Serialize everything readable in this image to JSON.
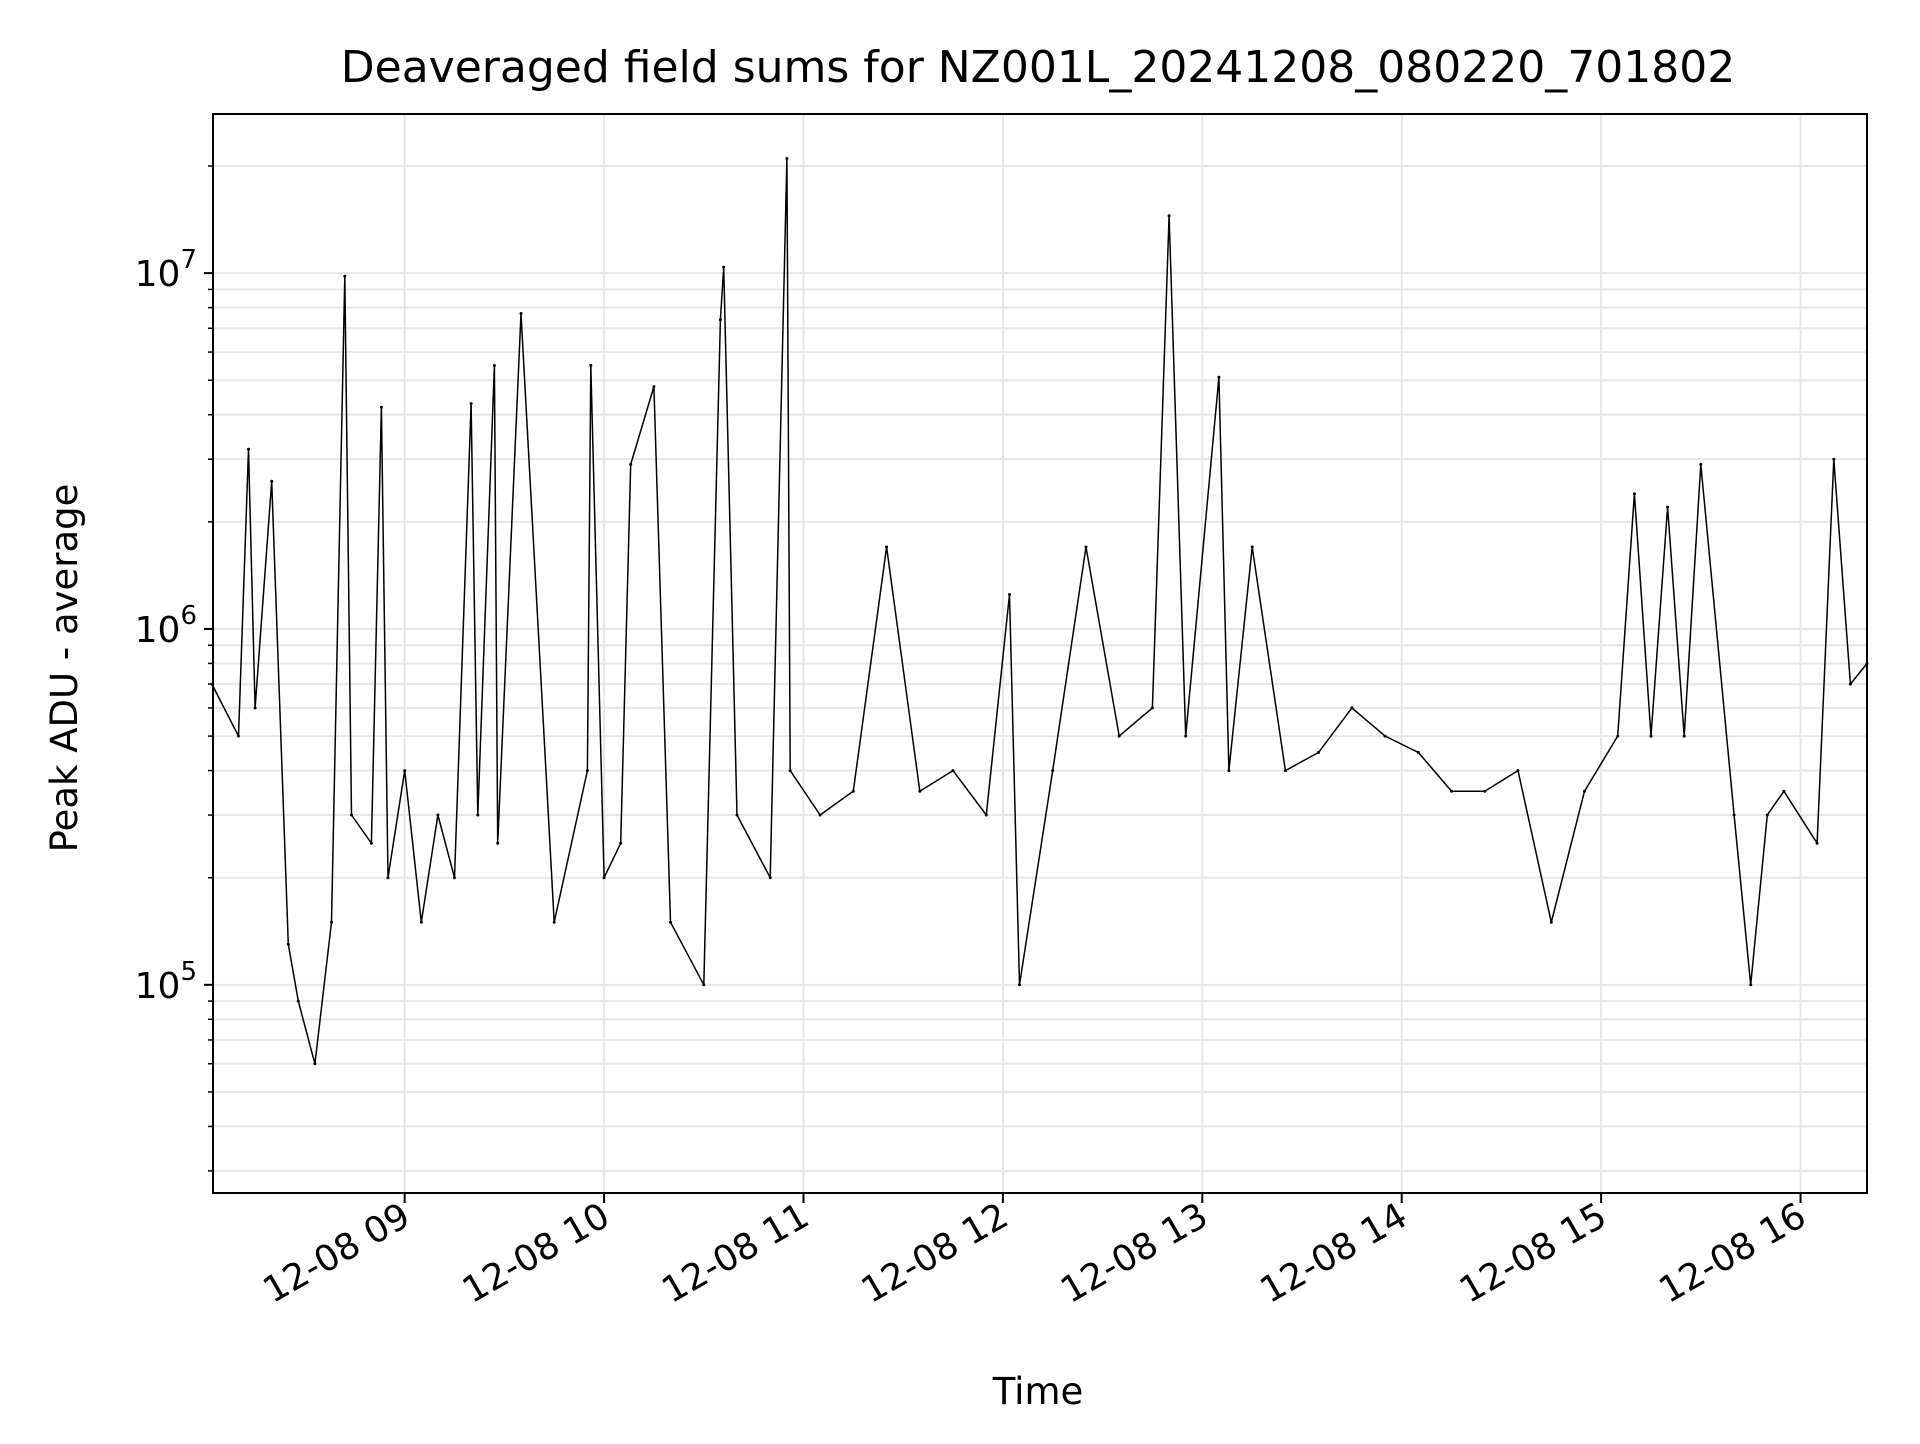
{
  "chart_data": {
    "type": "line",
    "title": "Deaveraged field sums for NZ001L_20241208_080220_701802",
    "xlabel": "Time",
    "ylabel": "Peak ADU - average",
    "y_scale": "log",
    "ylim": [
      26000,
      28000000
    ],
    "xlim": [
      "2024-12-08 08:02:20",
      "2024-12-08 16:20:00"
    ],
    "grid": true,
    "line_color": "#000000",
    "grid_color": "#e6e6e6",
    "x_ticks": [
      {
        "value": "2024-12-08 09:00",
        "label": "12-08 09"
      },
      {
        "value": "2024-12-08 10:00",
        "label": "12-08 10"
      },
      {
        "value": "2024-12-08 11:00",
        "label": "12-08 11"
      },
      {
        "value": "2024-12-08 12:00",
        "label": "12-08 12"
      },
      {
        "value": "2024-12-08 13:00",
        "label": "12-08 13"
      },
      {
        "value": "2024-12-08 14:00",
        "label": "12-08 14"
      },
      {
        "value": "2024-12-08 15:00",
        "label": "12-08 15"
      },
      {
        "value": "2024-12-08 16:00",
        "label": "12-08 16"
      }
    ],
    "y_ticks": [
      {
        "value": 100000,
        "base": "10",
        "exp": "5"
      },
      {
        "value": 1000000,
        "base": "10",
        "exp": "6"
      },
      {
        "value": 10000000,
        "base": "10",
        "exp": "7"
      }
    ],
    "series": [
      {
        "x": [
          "2024-12-08 08:02",
          "2024-12-08 08:10",
          "2024-12-08 08:13",
          "2024-12-08 08:15",
          "2024-12-08 08:20",
          "2024-12-08 08:25",
          "2024-12-08 08:28",
          "2024-12-08 08:33",
          "2024-12-08 08:38",
          "2024-12-08 08:42",
          "2024-12-08 08:44",
          "2024-12-08 08:50",
          "2024-12-08 08:53",
          "2024-12-08 08:55",
          "2024-12-08 09:00",
          "2024-12-08 09:05",
          "2024-12-08 09:10",
          "2024-12-08 09:15",
          "2024-12-08 09:20",
          "2024-12-08 09:22",
          "2024-12-08 09:27",
          "2024-12-08 09:28",
          "2024-12-08 09:35",
          "2024-12-08 09:45",
          "2024-12-08 09:55",
          "2024-12-08 09:56",
          "2024-12-08 10:00",
          "2024-12-08 10:05",
          "2024-12-08 10:08",
          "2024-12-08 10:15",
          "2024-12-08 10:20",
          "2024-12-08 10:30",
          "2024-12-08 10:35",
          "2024-12-08 10:36",
          "2024-12-08 10:40",
          "2024-12-08 10:50",
          "2024-12-08 10:55",
          "2024-12-08 10:56",
          "2024-12-08 11:05",
          "2024-12-08 11:15",
          "2024-12-08 11:25",
          "2024-12-08 11:35",
          "2024-12-08 11:45",
          "2024-12-08 11:55",
          "2024-12-08 12:02",
          "2024-12-08 12:05",
          "2024-12-08 12:15",
          "2024-12-08 12:25",
          "2024-12-08 12:35",
          "2024-12-08 12:45",
          "2024-12-08 12:50",
          "2024-12-08 12:55",
          "2024-12-08 13:05",
          "2024-12-08 13:08",
          "2024-12-08 13:15",
          "2024-12-08 13:25",
          "2024-12-08 13:35",
          "2024-12-08 13:45",
          "2024-12-08 13:55",
          "2024-12-08 14:05",
          "2024-12-08 14:15",
          "2024-12-08 14:25",
          "2024-12-08 14:35",
          "2024-12-08 14:45",
          "2024-12-08 14:55",
          "2024-12-08 15:05",
          "2024-12-08 15:10",
          "2024-12-08 15:15",
          "2024-12-08 15:20",
          "2024-12-08 15:25",
          "2024-12-08 15:30",
          "2024-12-08 15:40",
          "2024-12-08 15:45",
          "2024-12-08 15:50",
          "2024-12-08 15:55",
          "2024-12-08 16:05",
          "2024-12-08 16:10",
          "2024-12-08 16:15",
          "2024-12-08 16:20"
        ],
        "values": [
          700000,
          500000,
          3200000,
          600000,
          2600000,
          130000,
          90000,
          60000,
          150000,
          9800000,
          300000,
          250000,
          4200000,
          200000,
          400000,
          150000,
          300000,
          200000,
          4300000,
          300000,
          5500000,
          250000,
          7700000,
          150000,
          400000,
          5500000,
          200000,
          250000,
          2900000,
          4800000,
          150000,
          100000,
          7400000,
          10400000,
          300000,
          200000,
          21000000,
          400000,
          300000,
          350000,
          1700000,
          350000,
          400000,
          300000,
          1250000,
          100000,
          400000,
          1700000,
          500000,
          600000,
          14500000,
          500000,
          5100000,
          400000,
          1700000,
          400000,
          450000,
          600000,
          500000,
          450000,
          350000,
          350000,
          400000,
          150000,
          350000,
          500000,
          2400000,
          500000,
          2200000,
          500000,
          2900000,
          300000,
          100000,
          300000,
          350000,
          250000,
          3000000,
          700000,
          800000
        ]
      }
    ]
  }
}
